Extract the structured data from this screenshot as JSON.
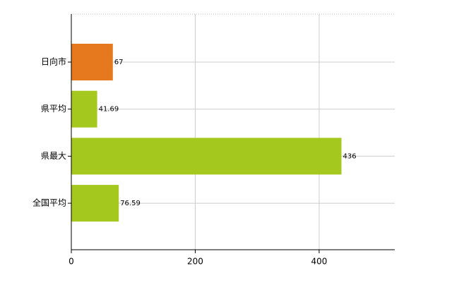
{
  "chart_data": {
    "type": "bar",
    "orientation": "horizontal",
    "categories": [
      "日向市",
      "県平均",
      "県最大",
      "全国平均"
    ],
    "values": [
      67,
      41.69,
      436,
      76.59
    ],
    "colors": [
      "#e6781e",
      "#a5c81e",
      "#a5c81e",
      "#a5c81e"
    ],
    "xlim": [
      0,
      522
    ],
    "xticks": [
      0,
      200,
      400
    ],
    "grid": true
  }
}
